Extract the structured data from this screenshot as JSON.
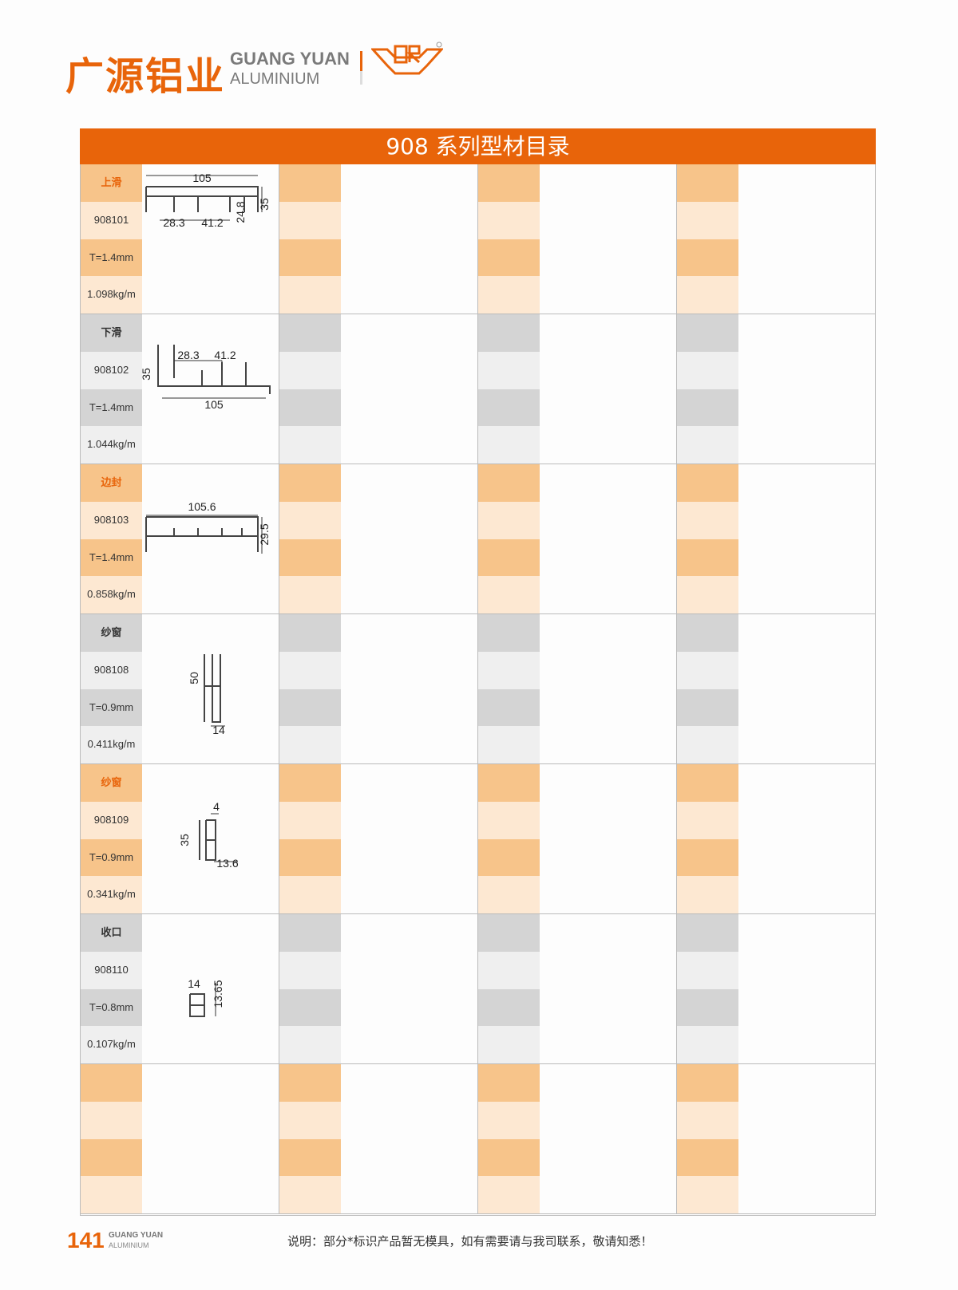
{
  "header": {
    "logo_cn": "广源铝业",
    "logo_en_line1": "GUANG YUAN",
    "logo_en_line2": "ALUMINIUM",
    "brand_mark": "GR",
    "title": "908 系列型材目录"
  },
  "colors": {
    "accent": "#e8640a",
    "orange_dark": "#f7c48a",
    "orange_light": "#fde8d2",
    "gray_dark": "#d4d4d4",
    "gray_light": "#efefef"
  },
  "sections": [
    {
      "theme": "orange",
      "name": "上滑",
      "code": "908101",
      "thickness": "T=1.4mm",
      "weight": "1.098kg/m",
      "dims": [
        "105",
        "28.3",
        "41.2",
        "24.8",
        "35"
      ]
    },
    {
      "theme": "gray",
      "name": "下滑",
      "code": "908102",
      "thickness": "T=1.4mm",
      "weight": "1.044kg/m",
      "dims": [
        "28.3",
        "41.2",
        "35",
        "105"
      ]
    },
    {
      "theme": "orange",
      "name": "边封",
      "code": "908103",
      "thickness": "T=1.4mm",
      "weight": "0.858kg/m",
      "dims": [
        "105.6",
        "29.5"
      ]
    },
    {
      "theme": "gray",
      "name": "纱窗",
      "code": "908108",
      "thickness": "T=0.9mm",
      "weight": "0.411kg/m",
      "dims": [
        "50",
        "14"
      ]
    },
    {
      "theme": "orange",
      "name": "纱窗",
      "code": "908109",
      "thickness": "T=0.9mm",
      "weight": "0.341kg/m",
      "dims": [
        "4",
        "35",
        "13.6"
      ]
    },
    {
      "theme": "gray",
      "name": "收口",
      "code": "908110",
      "thickness": "T=0.8mm",
      "weight": "0.107kg/m",
      "dims": [
        "14",
        "13.65"
      ]
    },
    {
      "theme": "orange",
      "name": "",
      "code": "",
      "thickness": "",
      "weight": "",
      "dims": []
    }
  ],
  "footer": {
    "page_number": "141",
    "brand_line1": "GUANG YUAN",
    "brand_line2": "ALUMINIUM",
    "note": "说明：部分*标识产品暂无模具，如有需要请与我司联系，敬请知悉！"
  }
}
